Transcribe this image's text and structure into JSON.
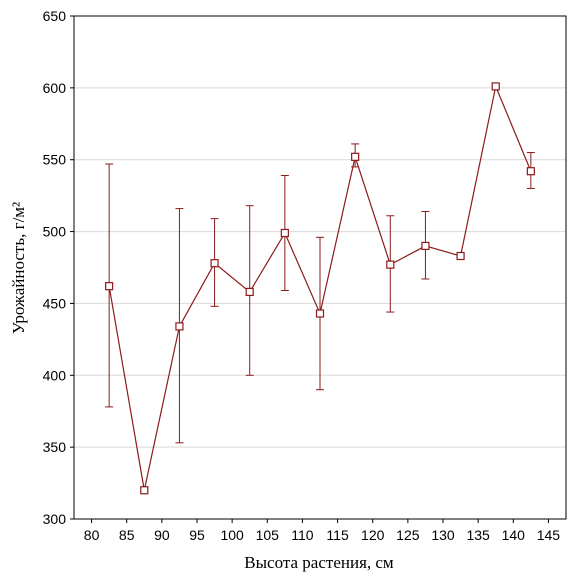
{
  "chart_data": {
    "type": "line",
    "title": "",
    "xlabel": "Высота растения, см",
    "ylabel": "Урожайность, г/м²",
    "xlim": [
      77.5,
      147.5
    ],
    "ylim": [
      300,
      650
    ],
    "xticks": [
      80,
      85,
      90,
      95,
      100,
      105,
      110,
      115,
      120,
      125,
      130,
      135,
      140,
      145
    ],
    "yticks": [
      300,
      350,
      400,
      450,
      500,
      550,
      600,
      650
    ],
    "grid": "horizontal",
    "colors": {
      "series": "#8b1a1a",
      "grid": "#d9d9d9",
      "frame": "#000000"
    },
    "series": [
      {
        "points": [
          {
            "x": 82.5,
            "y": 462,
            "err_low": 378,
            "err_high": 547
          },
          {
            "x": 87.5,
            "y": 320
          },
          {
            "x": 92.5,
            "y": 434,
            "err_low": 353,
            "err_high": 516
          },
          {
            "x": 97.5,
            "y": 478,
            "err_low": 448,
            "err_high": 509
          },
          {
            "x": 102.5,
            "y": 458,
            "err_low": 400,
            "err_high": 518
          },
          {
            "x": 107.5,
            "y": 499,
            "err_low": 459,
            "err_high": 539
          },
          {
            "x": 112.5,
            "y": 443,
            "err_low": 390,
            "err_high": 496
          },
          {
            "x": 117.5,
            "y": 552,
            "err_low": 545,
            "err_high": 561
          },
          {
            "x": 122.5,
            "y": 477,
            "err_low": 444,
            "err_high": 511
          },
          {
            "x": 127.5,
            "y": 490,
            "err_low": 467,
            "err_high": 514
          },
          {
            "x": 132.5,
            "y": 483
          },
          {
            "x": 137.5,
            "y": 601
          },
          {
            "x": 142.5,
            "y": 542,
            "err_low": 530,
            "err_high": 555
          }
        ]
      }
    ]
  }
}
